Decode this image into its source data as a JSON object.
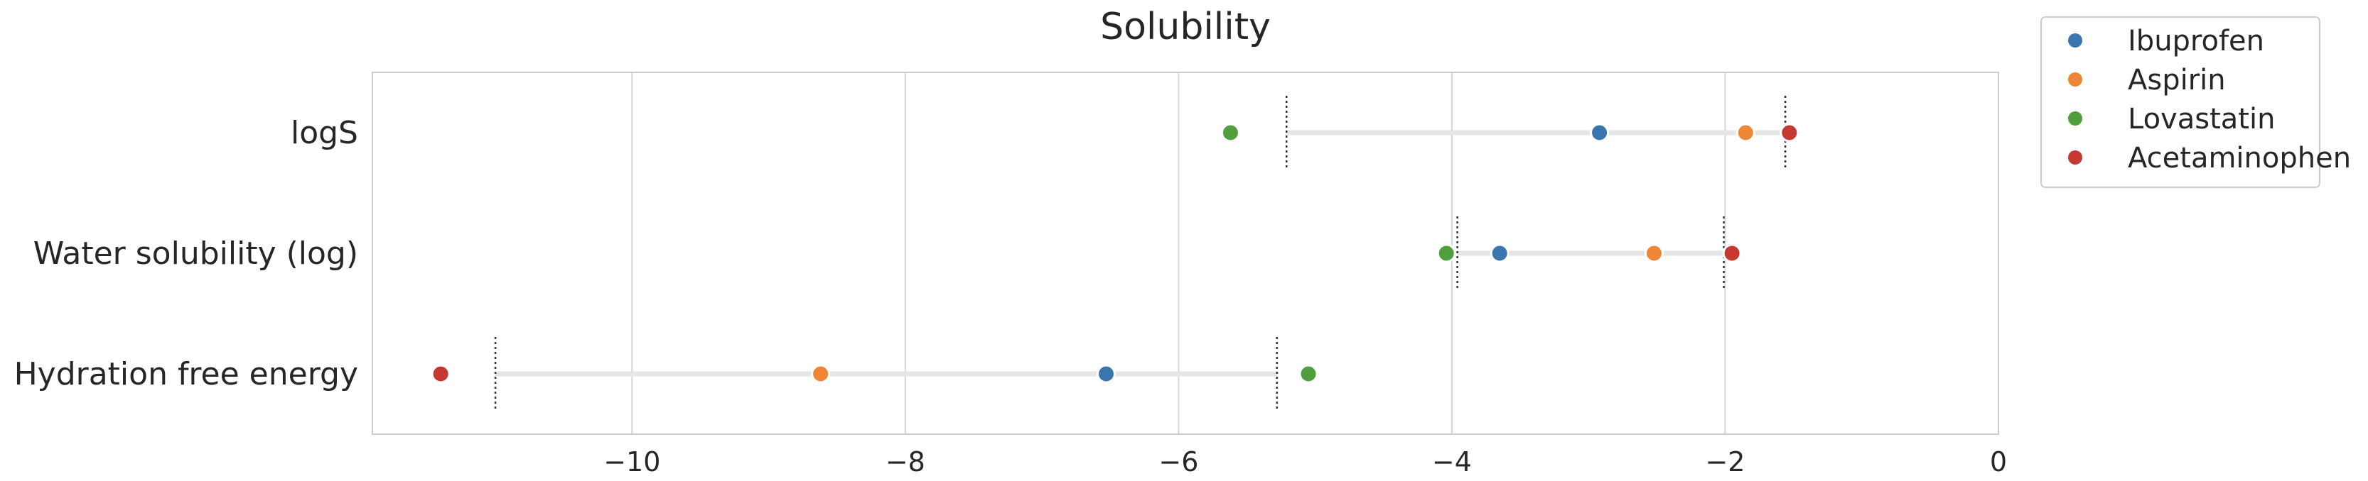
{
  "chart_data": {
    "type": "scatter",
    "title": "Solubility",
    "xlabel": "",
    "ylabel": "",
    "xlim": [
      -11.9,
      0
    ],
    "xticks": [
      -10,
      -8,
      -6,
      -4,
      -2,
      0
    ],
    "xtick_labels": [
      "−10",
      "−8",
      "−6",
      "−4",
      "−2",
      "0"
    ],
    "grid": "vertical",
    "legend_position": "outside-top-right",
    "categories": [
      "logS",
      "Water solubility (log)",
      "Hydration free energy"
    ],
    "series": [
      {
        "name": "Ibuprofen",
        "color": "#3b75af",
        "values": [
          -2.92,
          -3.65,
          -6.53
        ]
      },
      {
        "name": "Aspirin",
        "color": "#ef8636",
        "values": [
          -1.85,
          -2.52,
          -8.62
        ]
      },
      {
        "name": "Lovastatin",
        "color": "#519e3e",
        "values": [
          -5.62,
          -4.04,
          -5.05
        ]
      },
      {
        "name": "Acetaminophen",
        "color": "#c53932",
        "values": [
          -1.53,
          -1.95,
          -11.4
        ]
      }
    ],
    "reference_ranges": [
      {
        "category": "logS",
        "low": -5.21,
        "high": -1.56
      },
      {
        "category": "Water solubility (log)",
        "low": -3.96,
        "high": -2.01
      },
      {
        "category": "Hydration free energy",
        "low": -11.0,
        "high": -5.28
      }
    ]
  }
}
